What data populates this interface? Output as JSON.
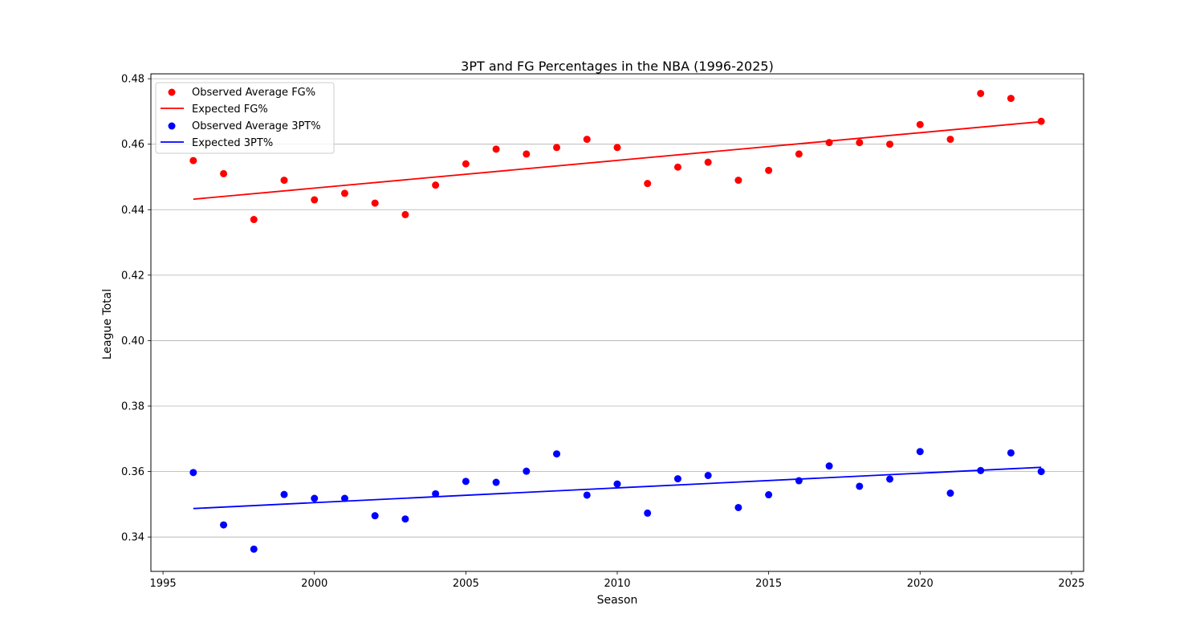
{
  "chart_data": {
    "type": "scatter",
    "title": "3PT and FG Percentages in the NBA (1996-2025)",
    "xlabel": "Season",
    "ylabel": "League Total",
    "xlim": [
      1994.6,
      2025.4
    ],
    "ylim": [
      0.3295,
      0.4815
    ],
    "xticks": [
      1995,
      2000,
      2005,
      2010,
      2015,
      2020,
      2025
    ],
    "yticks": [
      0.34,
      0.36,
      0.38,
      0.4,
      0.42,
      0.44,
      0.46,
      0.48
    ],
    "ytick_labels": [
      "0.34",
      "0.36",
      "0.38",
      "0.40",
      "0.42",
      "0.44",
      "0.46",
      "0.48"
    ],
    "grid": "y-axis",
    "legend_position": "top-left",
    "x": [
      1996,
      1997,
      1998,
      1999,
      2000,
      2001,
      2002,
      2003,
      2004,
      2005,
      2006,
      2007,
      2008,
      2009,
      2010,
      2011,
      2012,
      2013,
      2014,
      2015,
      2016,
      2017,
      2018,
      2019,
      2020,
      2021,
      2022,
      2023,
      2024
    ],
    "series": [
      {
        "name": "Observed Average FG%",
        "kind": "scatter",
        "color": "#ff0000",
        "values": [
          0.455,
          0.451,
          0.437,
          0.449,
          0.443,
          0.445,
          0.442,
          0.4385,
          0.4475,
          0.454,
          0.4585,
          0.457,
          0.459,
          0.4615,
          0.459,
          0.448,
          0.453,
          0.4545,
          0.449,
          0.452,
          0.457,
          0.4605,
          0.4605,
          0.46,
          0.466,
          0.4615,
          0.4755,
          0.474,
          0.467
        ]
      },
      {
        "name": "Expected FG%",
        "kind": "line",
        "color": "#ff0000",
        "x": [
          1996,
          2024
        ],
        "values": [
          0.4432,
          0.4669
        ]
      },
      {
        "name": "Observed Average 3PT%",
        "kind": "scatter",
        "color": "#0000ff",
        "values": [
          0.3597,
          0.3437,
          0.3363,
          0.353,
          0.3518,
          0.3518,
          0.3465,
          0.3455,
          0.3532,
          0.357,
          0.3567,
          0.3601,
          0.3654,
          0.3528,
          0.3562,
          0.3473,
          0.3578,
          0.3588,
          0.349,
          0.3529,
          0.3572,
          0.3617,
          0.3555,
          0.3577,
          0.3661,
          0.3534,
          0.3603,
          0.3657,
          0.36
        ]
      },
      {
        "name": "Expected 3PT%",
        "kind": "line",
        "color": "#0000ff",
        "x": [
          1996,
          2024
        ],
        "values": [
          0.3487,
          0.3613
        ]
      }
    ]
  }
}
